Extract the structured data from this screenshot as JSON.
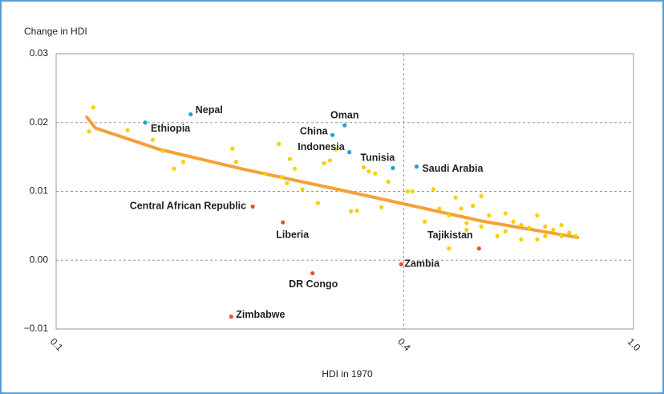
{
  "chart_data": {
    "type": "scatter",
    "y_label": "Change in HDI",
    "x_label": "HDI in 1970",
    "xlim": [
      0.1,
      1.0
    ],
    "xticks": [
      0.1,
      0.4,
      {
        "value": 1.0,
        "label": "1.0"
      }
    ],
    "x_log": true,
    "ylim": [
      -0.01,
      0.03
    ],
    "yticks": [
      {
        "value": -0.01,
        "label": "−0.01"
      },
      {
        "value": 0,
        "label": "0.00"
      },
      0.01,
      0.02,
      0.03
    ],
    "grid": true,
    "series": [
      {
        "color": "#f5d000",
        "x": [
          0.116,
          0.114,
          0.133,
          0.147,
          0.153,
          0.16,
          0.166,
          0.202,
          0.205,
          0.23,
          0.243,
          0.246,
          0.251,
          0.254,
          0.259,
          0.267,
          0.284,
          0.291,
          0.298,
          0.305,
          0.324,
          0.332,
          0.341,
          0.348,
          0.357,
          0.366,
          0.376,
          0.406,
          0.414,
          0.435,
          0.45,
          0.461,
          0.479,
          0.492,
          0.503,
          0.514,
          0.514,
          0.527,
          0.545,
          0.545,
          0.562,
          0.581,
          0.6,
          0.6,
          0.619,
          0.639,
          0.639,
          0.66,
          0.681,
          0.681,
          0.703,
          0.703,
          0.726,
          0.75,
          0.75,
          0.774,
          0.794,
          0.479
        ],
        "values": [
          0.0222,
          0.0187,
          0.0189,
          0.0175,
          0.0159,
          0.0133,
          0.0143,
          0.0162,
          0.0143,
          0.0126,
          0.0169,
          0.0121,
          0.0112,
          0.0147,
          0.0133,
          0.0103,
          0.0083,
          0.0141,
          0.0145,
          0.0161,
          0.0071,
          0.0072,
          0.0135,
          0.0129,
          0.0126,
          0.0077,
          0.0114,
          0.01,
          0.01,
          0.0056,
          0.0103,
          0.0075,
          0.0065,
          0.0091,
          0.0075,
          0.0054,
          0.0044,
          0.0079,
          0.0093,
          0.0049,
          0.0065,
          0.0035,
          0.0068,
          0.0042,
          0.0056,
          0.003,
          0.0051,
          0.0047,
          0.0065,
          0.003,
          0.0049,
          0.0035,
          0.0044,
          0.0035,
          0.0051,
          0.004,
          0.0035,
          0.0017
        ]
      },
      {
        "color": "#1ea5c8",
        "x": [
          0.171,
          0.1426,
          0.316,
          0.301,
          0.322,
          0.383,
          0.421
        ],
        "values": [
          0.0212,
          0.02,
          0.0196,
          0.0182,
          0.0157,
          0.0134,
          0.0136
        ],
        "labels": [
          "Nepal",
          "Ethiopia",
          "Oman",
          "China",
          "Indonesia",
          "Tunisia",
          "Saudi Arabia"
        ]
      },
      {
        "color": "#e8502a",
        "x": [
          0.219,
          0.247,
          0.54,
          0.396,
          0.278,
          0.201
        ],
        "values": [
          0.0078,
          0.0055,
          0.0017,
          -0.0006,
          -0.0019,
          -0.0082
        ],
        "labels": [
          "Central African Republic",
          "Liberia",
          "Tajikistan",
          "Zambia",
          "DR Congo",
          "Zimbabwe"
        ]
      }
    ],
    "trend": {
      "color": "#f4a13a",
      "x": [
        0.113,
        0.117,
        0.151,
        0.209,
        0.319,
        0.545,
        0.8
      ],
      "y": [
        0.0208,
        0.0192,
        0.0161,
        0.0133,
        0.01,
        0.0057,
        0.0033
      ]
    }
  }
}
